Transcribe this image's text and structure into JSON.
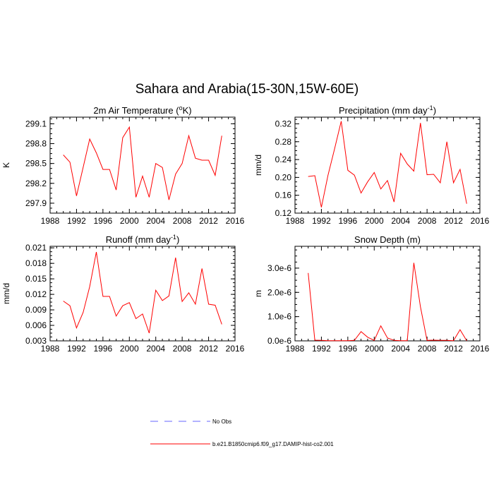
{
  "title": "Sahara and Arabia(15-30N,15W-60E)",
  "chart_data": [
    {
      "type": "line",
      "title": "2m Air Temperature (",
      "title_sup": "o",
      "title_after": "K)",
      "ylabel": "K",
      "xlim": [
        1988,
        2016
      ],
      "xticks": [
        "1988",
        "1992",
        "1996",
        "2000",
        "2004",
        "2008",
        "2012",
        "2016"
      ],
      "ylim": [
        297.75,
        299.2
      ],
      "yticks": [
        "297.9",
        "298.2",
        "298.5",
        "298.8",
        "299.1"
      ],
      "series": [
        {
          "color": "#ff0000",
          "x": [
            1990,
            1991,
            1992,
            1993,
            1994,
            1995,
            1996,
            1997,
            1998,
            1999,
            2000,
            2001,
            2002,
            2003,
            2004,
            2005,
            2006,
            2007,
            2008,
            2009,
            2010,
            2011,
            2012,
            2013,
            2014
          ],
          "y": [
            298.63,
            298.52,
            298.01,
            298.44,
            298.87,
            298.66,
            298.41,
            298.41,
            298.1,
            298.89,
            299.05,
            297.99,
            298.31,
            297.99,
            298.5,
            298.44,
            297.95,
            298.34,
            298.5,
            298.92,
            298.58,
            298.55,
            298.55,
            298.32,
            298.92
          ]
        }
      ]
    },
    {
      "type": "line",
      "title": "Precipitation (mm day",
      "title_sup": "-1",
      "title_after": ")",
      "ylabel": "mm/d",
      "xlim": [
        1988,
        2016
      ],
      "xticks": [
        "1988",
        "1992",
        "1996",
        "2000",
        "2004",
        "2008",
        "2012",
        "2016"
      ],
      "ylim": [
        0.12,
        0.335
      ],
      "yticks": [
        "0.12",
        "0.16",
        "0.20",
        "0.24",
        "0.28",
        "0.32"
      ],
      "series": [
        {
          "color": "#ff0000",
          "x": [
            1990,
            1991,
            1992,
            1993,
            1994,
            1995,
            1996,
            1997,
            1998,
            1999,
            2000,
            2001,
            2002,
            2003,
            2004,
            2005,
            2006,
            2007,
            2008,
            2009,
            2010,
            2011,
            2012,
            2013,
            2014
          ],
          "y": [
            0.202,
            0.204,
            0.133,
            0.205,
            0.264,
            0.326,
            0.216,
            0.205,
            0.165,
            0.19,
            0.211,
            0.174,
            0.193,
            0.145,
            0.254,
            0.23,
            0.214,
            0.322,
            0.206,
            0.207,
            0.188,
            0.28,
            0.188,
            0.218,
            0.141
          ]
        }
      ]
    },
    {
      "type": "line",
      "title": "Runoff (mm day",
      "title_sup": "-1",
      "title_after": ")",
      "ylabel": "mm/d",
      "xlim": [
        1988,
        2016
      ],
      "xticks": [
        "1988",
        "1992",
        "1996",
        "2000",
        "2004",
        "2008",
        "2012",
        "2016"
      ],
      "ylim": [
        0.003,
        0.0213
      ],
      "yticks": [
        "0.003",
        "0.006",
        "0.009",
        "0.012",
        "0.015",
        "0.018",
        "0.021"
      ],
      "series": [
        {
          "color": "#ff0000",
          "x": [
            1990,
            1991,
            1992,
            1993,
            1994,
            1995,
            1996,
            1997,
            1998,
            1999,
            2000,
            2001,
            2002,
            2003,
            2004,
            2005,
            2006,
            2007,
            2008,
            2009,
            2010,
            2011,
            2012,
            2013,
            2014
          ],
          "y": [
            0.0107,
            0.0098,
            0.0055,
            0.0085,
            0.0135,
            0.0202,
            0.0116,
            0.0116,
            0.0078,
            0.0098,
            0.0104,
            0.0073,
            0.0082,
            0.0045,
            0.0128,
            0.0108,
            0.0117,
            0.0191,
            0.0106,
            0.0123,
            0.0101,
            0.017,
            0.0101,
            0.0099,
            0.0062
          ]
        }
      ]
    },
    {
      "type": "line",
      "title": "Snow Depth (m)",
      "title_sup": "",
      "title_after": "",
      "ylabel": "m",
      "xlim": [
        1988,
        2016
      ],
      "xticks": [
        "1988",
        "1992",
        "1996",
        "2000",
        "2004",
        "2008",
        "2012",
        "2016"
      ],
      "ylim": [
        0,
        3.9e-06
      ],
      "ytick_values": [
        0,
        1e-06,
        2e-06,
        3e-06
      ],
      "yticks": [
        "0.0e-6",
        "1.0e-6",
        "2.0e-6",
        "3.0e-6"
      ],
      "series": [
        {
          "color": "#ff0000",
          "x": [
            1990,
            1991,
            1992,
            1993,
            1994,
            1995,
            1996,
            1997,
            1998,
            1999,
            2000,
            2001,
            2002,
            2003,
            2004,
            2005,
            2006,
            2007,
            2008,
            2009,
            2010,
            2011,
            2012,
            2013,
            2014
          ],
          "y": [
            2.8e-06,
            3e-08,
            2e-08,
            1e-08,
            1e-08,
            1e-08,
            1e-08,
            2e-08,
            3.8e-07,
            1.5e-07,
            2e-08,
            6.2e-07,
            1.2e-07,
            2e-08,
            1e-08,
            1e-08,
            3.22e-06,
            1.4e-06,
            2e-08,
            3e-08,
            2e-08,
            2e-08,
            1e-08,
            4.6e-07,
            1e-08
          ]
        }
      ]
    }
  ],
  "legend": [
    {
      "label": "No Obs",
      "color": "#6666ff",
      "style": "dashed"
    },
    {
      "label": "b.e21.B1850cmip6.f09_g17.DAMIP-hist-co2.001",
      "color": "#ff0000",
      "style": "solid"
    }
  ]
}
